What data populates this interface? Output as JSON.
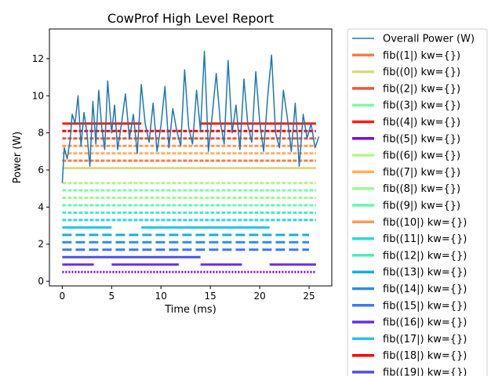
{
  "chart_data": {
    "type": "line",
    "title": "CowProf High Level Report",
    "xlabel": "Time (ms)",
    "ylabel": "Power (W)",
    "xlim": [
      -1.3,
      27.3
    ],
    "ylim": [
      -0.25,
      13.6
    ],
    "xticks": [
      0,
      5,
      10,
      15,
      20,
      25
    ],
    "yticks": [
      0,
      2,
      4,
      6,
      8,
      10,
      12
    ],
    "grid": false,
    "legend_placement": "outside-right",
    "overall_power": {
      "name": "Overall Power (W)",
      "color": "#1f77b4",
      "x": [
        0,
        0.2,
        0.5,
        0.8,
        1.0,
        1.3,
        1.6,
        1.9,
        2.2,
        2.5,
        2.8,
        3.1,
        3.4,
        3.7,
        4.0,
        4.3,
        4.6,
        5.0,
        5.3,
        5.6,
        6.0,
        6.4,
        6.8,
        7.2,
        7.6,
        8.0,
        8.4,
        8.8,
        9.2,
        9.6,
        10.0,
        10.4,
        10.8,
        11.2,
        11.6,
        12.0,
        12.4,
        12.8,
        13.2,
        13.6,
        14.0,
        14.4,
        14.8,
        15.2,
        15.6,
        16.0,
        16.4,
        16.8,
        17.2,
        17.6,
        18.0,
        18.4,
        18.8,
        19.2,
        19.6,
        20.0,
        20.4,
        20.8,
        21.2,
        21.6,
        22.0,
        22.4,
        22.8,
        23.2,
        23.6,
        24.0,
        24.4,
        24.8,
        25.2,
        25.6,
        26.0
      ],
      "y": [
        5.3,
        7.2,
        6.6,
        7.6,
        9.0,
        8.5,
        10.0,
        7.3,
        9.1,
        8.0,
        6.2,
        9.7,
        7.4,
        10.3,
        8.3,
        7.1,
        10.8,
        8.0,
        9.5,
        7.1,
        8.5,
        10.1,
        7.7,
        9.0,
        6.9,
        10.6,
        8.5,
        7.5,
        9.6,
        7.0,
        8.4,
        10.5,
        7.2,
        9.3,
        8.1,
        7.3,
        11.4,
        8.3,
        7.4,
        10.3,
        8.1,
        12.4,
        7.0,
        9.0,
        11.2,
        8.6,
        7.4,
        11.9,
        8.0,
        9.5,
        7.1,
        10.9,
        8.4,
        7.5,
        11.3,
        8.6,
        7.0,
        9.9,
        12.2,
        8.0,
        7.2,
        10.3,
        8.8,
        7.0,
        9.6,
        6.2,
        9.0,
        7.7,
        8.5,
        7.2,
        7.8
      ]
    },
    "tasks": [
      {
        "name": "fib((1|) kw={})",
        "color": "#ff7c43",
        "y": 6.5,
        "pattern": "dash",
        "segments": [
          [
            0,
            25.7
          ]
        ]
      },
      {
        "name": "fib((0|) kw={})",
        "color": "#d4dd80",
        "y": 6.1,
        "pattern": "solid",
        "segments": [
          [
            0,
            25.7
          ]
        ]
      },
      {
        "name": "fib((2|) kw={})",
        "color": "#f0543a",
        "y": 7.7,
        "pattern": "dash",
        "segments": [
          [
            0,
            25.7
          ]
        ]
      },
      {
        "name": "fib((3|) kw={})",
        "color": "#7ef9a5",
        "y": 4.9,
        "pattern": "dash",
        "segments": [
          [
            0,
            25.7
          ]
        ]
      },
      {
        "name": "fib((4|) kw={})",
        "color": "#ff1c0e",
        "y": 8.5,
        "pattern": "solid",
        "segments": [
          [
            0,
            8.0
          ],
          [
            14.0,
            25.7
          ]
        ]
      },
      {
        "name": "fib((5|) kw={})",
        "color": "#7a0ae8",
        "y": 0.5,
        "pattern": "dot",
        "segments": [
          [
            0,
            25.7
          ]
        ]
      },
      {
        "name": "fib((6|) kw={})",
        "color": "#b8f48c",
        "y": 5.3,
        "pattern": "dash",
        "segments": [
          [
            0,
            25.7
          ]
        ]
      },
      {
        "name": "fib((7|) kw={})",
        "color": "#fdb064",
        "y": 6.9,
        "pattern": "dash",
        "segments": [
          [
            0,
            25.7
          ]
        ]
      },
      {
        "name": "fib((8|) kw={})",
        "color": "#9cf89a",
        "y": 4.5,
        "pattern": "dash",
        "segments": [
          [
            0,
            25.7
          ]
        ]
      },
      {
        "name": "fib((9|) kw={})",
        "color": "#64f8b4",
        "y": 4.1,
        "pattern": "dash",
        "segments": [
          [
            0,
            25.7
          ]
        ]
      },
      {
        "name": "fib((10|) kw={})",
        "color": "#ff9a56",
        "y": 7.3,
        "pattern": "dash",
        "segments": [
          [
            0,
            25.7
          ]
        ]
      },
      {
        "name": "fib((11|) kw={})",
        "color": "#2ed8d8",
        "y": 3.3,
        "pattern": "dash",
        "segments": [
          [
            0,
            25.7
          ]
        ]
      },
      {
        "name": "fib((12|) kw={})",
        "color": "#4de9c4",
        "y": 3.7,
        "pattern": "dash",
        "segments": [
          [
            0,
            25.7
          ]
        ]
      },
      {
        "name": "fib((13|) kw={})",
        "color": "#17aee0",
        "y": 2.5,
        "pattern": "longdash",
        "segments": [
          [
            0,
            25.0
          ]
        ]
      },
      {
        "name": "fib((14|) kw={})",
        "color": "#2e8cf0",
        "y": 2.1,
        "pattern": "longdash",
        "segments": [
          [
            0,
            25.0
          ]
        ]
      },
      {
        "name": "fib((15|) kw={})",
        "color": "#3a7bf0",
        "y": 1.7,
        "pattern": "longdash",
        "segments": [
          [
            0,
            25.0
          ]
        ]
      },
      {
        "name": "fib((16|) kw={})",
        "color": "#6a2ee8",
        "y": 0.9,
        "pattern": "solid",
        "segments": [
          [
            0,
            3.2
          ],
          [
            5.0,
            11.8
          ],
          [
            14.0,
            18.2
          ],
          [
            21.0,
            25.7
          ]
        ]
      },
      {
        "name": "fib((17|) kw={})",
        "color": "#24c4e4",
        "y": 2.9,
        "pattern": "solid",
        "segments": [
          [
            0,
            5.0
          ],
          [
            8.0,
            21.0
          ]
        ]
      },
      {
        "name": "fib((18|) kw={})",
        "color": "#ff0000",
        "y": 8.1,
        "pattern": "dash",
        "segments": [
          [
            0,
            25.7
          ]
        ]
      },
      {
        "name": "fib((19|) kw={})",
        "color": "#5050e0",
        "y": 1.3,
        "pattern": "solid",
        "segments": [
          [
            0,
            14.0
          ]
        ]
      }
    ]
  }
}
